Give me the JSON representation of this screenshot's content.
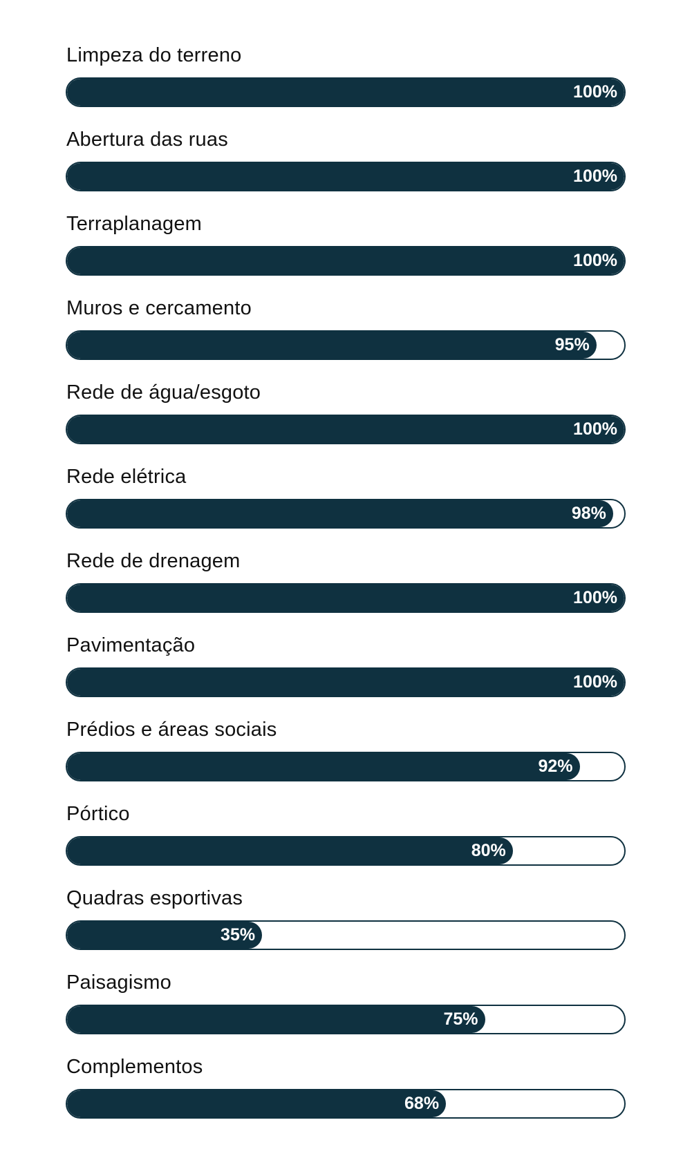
{
  "colors": {
    "bar_fill": "#0f3140",
    "bar_track": "#ffffff",
    "label_text": "#111111",
    "percent_text": "#ffffff"
  },
  "items": [
    {
      "label": "Limpeza do terreno",
      "percent_label": "100%",
      "value": 100
    },
    {
      "label": "Abertura das ruas",
      "percent_label": "100%",
      "value": 100
    },
    {
      "label": "Terraplanagem",
      "percent_label": "100%",
      "value": 100
    },
    {
      "label": "Muros e cercamento",
      "percent_label": "95%",
      "value": 95
    },
    {
      "label": "Rede de água/esgoto",
      "percent_label": "100%",
      "value": 100
    },
    {
      "label": "Rede elétrica",
      "percent_label": "98%",
      "value": 98
    },
    {
      "label": "Rede de drenagem",
      "percent_label": "100%",
      "value": 100
    },
    {
      "label": "Pavimentação",
      "percent_label": "100%",
      "value": 100
    },
    {
      "label": "Prédios e áreas sociais",
      "percent_label": "92%",
      "value": 92
    },
    {
      "label": "Pórtico",
      "percent_label": "80%",
      "value": 80
    },
    {
      "label": "Quadras esportivas",
      "percent_label": "35%",
      "value": 35
    },
    {
      "label": "Paisagismo",
      "percent_label": "75%",
      "value": 75
    },
    {
      "label": "Complementos",
      "percent_label": "68%",
      "value": 68
    }
  ]
}
